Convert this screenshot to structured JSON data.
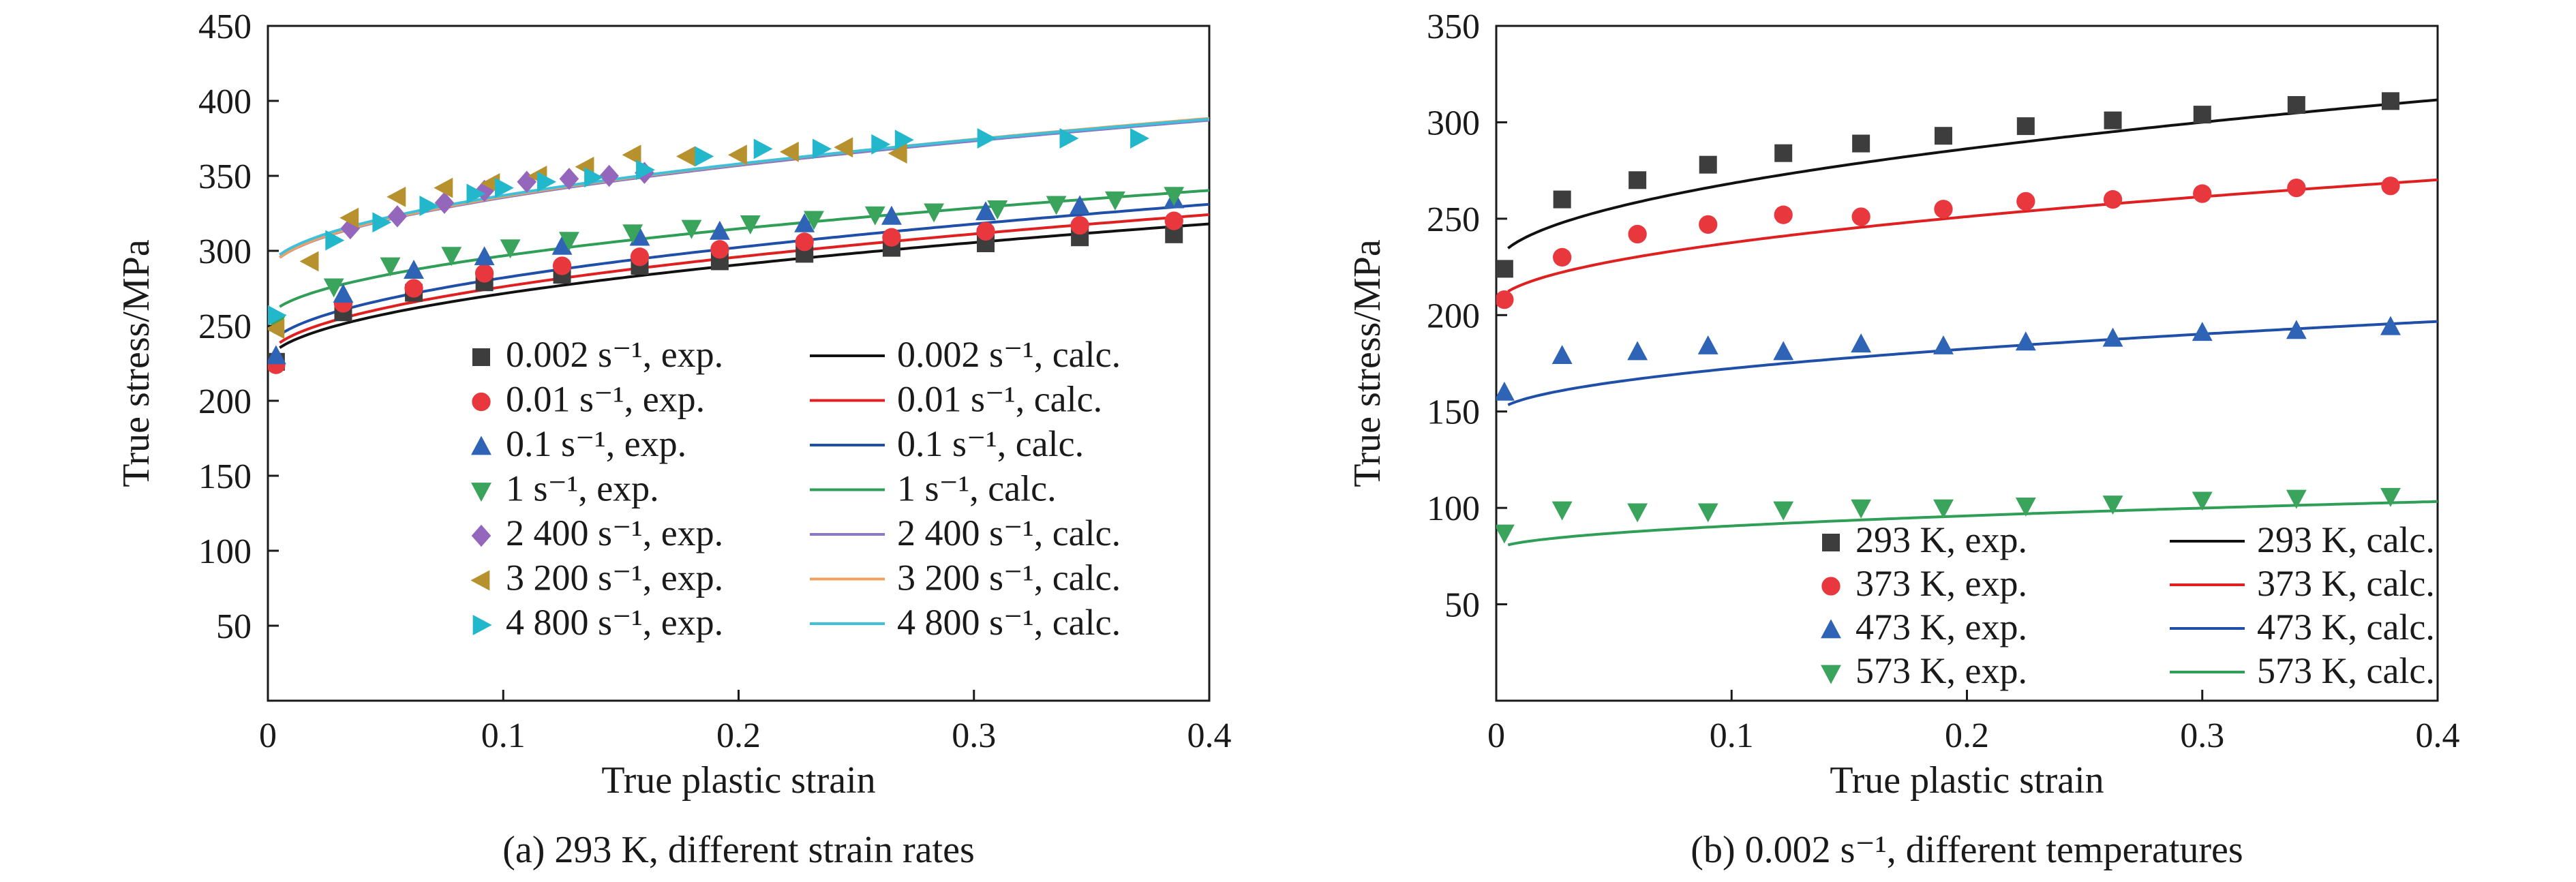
{
  "chart_data": [
    {
      "type": "line",
      "caption": "(a) 293 K, different strain rates",
      "xlabel": "True plastic strain",
      "ylabel": "True stress/MPa",
      "xlim": [
        0,
        0.4
      ],
      "ylim": [
        0,
        450
      ],
      "xticks": [
        0,
        0.1,
        0.2,
        0.3,
        0.4
      ],
      "xtick_labels": [
        "0",
        "0.1",
        "0.2",
        "0.3",
        "0.4"
      ],
      "yticks": [
        50,
        100,
        150,
        200,
        250,
        300,
        350,
        400,
        450
      ],
      "ytick_labels": [
        "50",
        "100",
        "150",
        "200",
        "250",
        "300",
        "350",
        "400",
        "450"
      ],
      "legend_position": "bottom-right",
      "legend_columns": 2,
      "series": [
        {
          "name": "0.002 s⁻¹, exp.",
          "kind": "markers",
          "marker": "square",
          "color": "#3d3d3d",
          "x": [
            0.002,
            0.032,
            0.062,
            0.092,
            0.125,
            0.158,
            0.192,
            0.228,
            0.265,
            0.305,
            0.345,
            0.385
          ],
          "y": [
            226,
            259,
            272,
            279,
            284,
            290,
            293,
            298,
            302,
            305,
            309,
            311
          ]
        },
        {
          "name": "0.01 s⁻¹, exp.",
          "kind": "markers",
          "marker": "circle",
          "color": "#e8383d",
          "x": [
            0.002,
            0.032,
            0.062,
            0.092,
            0.125,
            0.158,
            0.192,
            0.228,
            0.265,
            0.305,
            0.345,
            0.385
          ],
          "y": [
            224,
            265,
            275,
            285,
            290,
            296,
            301,
            306,
            309,
            313,
            317,
            320
          ]
        },
        {
          "name": "0.1 s⁻¹, exp.",
          "kind": "markers",
          "marker": "triangle-up",
          "color": "#2f63b5",
          "x": [
            0.002,
            0.032,
            0.062,
            0.092,
            0.125,
            0.158,
            0.192,
            0.228,
            0.265,
            0.305,
            0.345,
            0.385
          ],
          "y": [
            230,
            271,
            287,
            296,
            303,
            309,
            313,
            318,
            323,
            326,
            330,
            334
          ]
        },
        {
          "name": "1 s⁻¹, exp.",
          "kind": "markers",
          "marker": "triangle-down",
          "color": "#3aa35c",
          "x": [
            0.002,
            0.028,
            0.052,
            0.078,
            0.103,
            0.128,
            0.155,
            0.18,
            0.205,
            0.232,
            0.258,
            0.283,
            0.31,
            0.335,
            0.36,
            0.385
          ],
          "y": [
            252,
            276,
            290,
            297,
            302,
            307,
            312,
            315,
            318,
            321,
            324,
            326,
            328,
            331,
            334,
            337
          ]
        },
        {
          "name": "2 400 s⁻¹, exp.",
          "kind": "markers",
          "marker": "diamond",
          "color": "#9467bd",
          "x": [
            0.035,
            0.055,
            0.075,
            0.092,
            0.11,
            0.128,
            0.145,
            0.16
          ],
          "y": [
            315,
            323,
            332,
            340,
            346,
            348,
            350,
            352
          ]
        },
        {
          "name": "3 200 s⁻¹, exp.",
          "kind": "markers",
          "marker": "triangle-left",
          "color": "#b8912f",
          "x": [
            0.002,
            0.018,
            0.035,
            0.055,
            0.075,
            0.095,
            0.115,
            0.135,
            0.155,
            0.178,
            0.2,
            0.222,
            0.245,
            0.268
          ],
          "y": [
            248,
            293,
            322,
            336,
            342,
            345,
            350,
            356,
            364,
            363,
            364,
            366,
            369,
            365
          ]
        },
        {
          "name": "4 800 s⁻¹, exp.",
          "kind": "markers",
          "marker": "triangle-right",
          "color": "#23b7cc",
          "x": [
            0.002,
            0.028,
            0.048,
            0.068,
            0.088,
            0.1,
            0.118,
            0.138,
            0.16,
            0.185,
            0.21,
            0.235,
            0.26,
            0.27,
            0.305,
            0.34,
            0.37
          ],
          "y": [
            257,
            307,
            319,
            330,
            338,
            342,
            346,
            349,
            354,
            363,
            368,
            368,
            371,
            374,
            375,
            375,
            375
          ]
        },
        {
          "name": "0.002 s⁻¹, calc.",
          "kind": "line",
          "color": "#111111",
          "y0": 225,
          "a": 147,
          "n": 0.5
        },
        {
          "name": "0.01 s⁻¹, calc.",
          "kind": "line",
          "color": "#e02020",
          "y0": 228,
          "a": 152,
          "n": 0.5
        },
        {
          "name": "0.1 s⁻¹, calc.",
          "kind": "line",
          "color": "#1f4fa8",
          "y0": 233,
          "a": 155,
          "n": 0.5
        },
        {
          "name": "1 s⁻¹, calc.",
          "kind": "line",
          "color": "#2f9e57",
          "y0": 253,
          "a": 138,
          "n": 0.5
        },
        {
          "name": "2 400 s⁻¹, calc.",
          "kind": "line",
          "color": "#8a78c4",
          "y0": 284,
          "a": 163,
          "n": 0.5
        },
        {
          "name": "3 200 s⁻¹, calc.",
          "kind": "line",
          "color": "#f0a060",
          "y0": 284,
          "a": 165,
          "n": 0.5
        },
        {
          "name": "4 800 s⁻¹, calc.",
          "kind": "line",
          "color": "#3fc0d8",
          "y0": 286,
          "a": 161,
          "n": 0.5
        }
      ]
    },
    {
      "type": "line",
      "caption": "(b) 0.002 s⁻¹, different temperatures",
      "xlabel": "True plastic strain",
      "ylabel": "True stress/MPa",
      "xlim": [
        0,
        0.4
      ],
      "ylim": [
        0,
        350
      ],
      "xticks": [
        0,
        0.1,
        0.2,
        0.3,
        0.4
      ],
      "xtick_labels": [
        "0",
        "0.1",
        "0.2",
        "0.3",
        "0.4"
      ],
      "yticks": [
        50,
        100,
        150,
        200,
        250,
        300,
        350
      ],
      "ytick_labels": [
        "50",
        "100",
        "150",
        "200",
        "250",
        "300",
        "350"
      ],
      "legend_position": "bottom-right",
      "legend_columns": 2,
      "series": [
        {
          "name": "293 K, exp.",
          "kind": "markers",
          "marker": "square",
          "color": "#3d3d3d",
          "x": [
            0.002,
            0.028,
            0.06,
            0.09,
            0.122,
            0.155,
            0.19,
            0.225,
            0.262,
            0.3,
            0.34,
            0.38
          ],
          "y": [
            224,
            260,
            270,
            278,
            284,
            289,
            293,
            298,
            301,
            304,
            309,
            311
          ]
        },
        {
          "name": "373 K, exp.",
          "kind": "markers",
          "marker": "circle",
          "color": "#e8383d",
          "x": [
            0.002,
            0.028,
            0.06,
            0.09,
            0.122,
            0.155,
            0.19,
            0.225,
            0.262,
            0.3,
            0.34,
            0.38
          ],
          "y": [
            208,
            230,
            242,
            247,
            252,
            251,
            255,
            259,
            260,
            263,
            266,
            267
          ]
        },
        {
          "name": "473 K, exp.",
          "kind": "markers",
          "marker": "triangle-up",
          "color": "#2f63b5",
          "x": [
            0.002,
            0.028,
            0.06,
            0.09,
            0.122,
            0.155,
            0.19,
            0.225,
            0.262,
            0.3,
            0.34,
            0.38
          ],
          "y": [
            160,
            179,
            181,
            184,
            181,
            185,
            184,
            186,
            188,
            191,
            192,
            194
          ]
        },
        {
          "name": "573 K, exp.",
          "kind": "markers",
          "marker": "triangle-down",
          "color": "#3aa35c",
          "x": [
            0.002,
            0.028,
            0.06,
            0.09,
            0.122,
            0.155,
            0.19,
            0.225,
            0.262,
            0.3,
            0.34,
            0.38
          ],
          "y": [
            87,
            99,
            98,
            98,
            99,
            100,
            100,
            101,
            102,
            104,
            105,
            106
          ]
        },
        {
          "name": "293 K, calc.",
          "kind": "line",
          "color": "#111111",
          "y0": 225,
          "a": 137,
          "n": 0.5
        },
        {
          "name": "373 K, calc.",
          "kind": "line",
          "color": "#e02020",
          "y0": 205,
          "a": 103,
          "n": 0.5
        },
        {
          "name": "473 K, calc.",
          "kind": "line",
          "color": "#1f4fa8",
          "y0": 148,
          "a": 77,
          "n": 0.5
        },
        {
          "name": "573 K, calc.",
          "kind": "line",
          "color": "#2f9e57",
          "y0": 78,
          "a": 40,
          "n": 0.5
        }
      ]
    }
  ]
}
